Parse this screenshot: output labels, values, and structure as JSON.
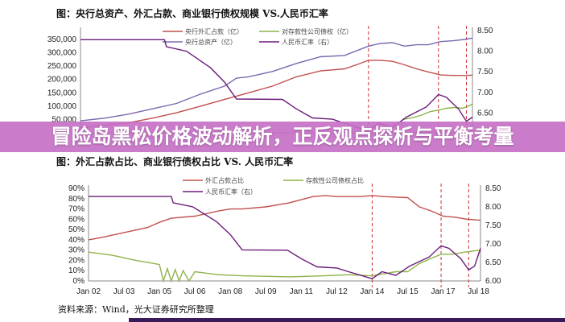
{
  "banner": {
    "title": "冒险岛黑松价格波动解析，正反观点探析与平衡考量",
    "color": "#c46ec4"
  },
  "source": "资料来源：Wind，光大证券研究所整理",
  "chart_data": [
    {
      "type": "line",
      "title": "图：央行总资产、外汇占款、商业银行债权规模 VS.人民币汇率",
      "left_axis": {
        "range": [
          0,
          350000
        ],
        "ticks": [
          "350,000",
          "300,000",
          "250,000",
          "200,000",
          "150,000",
          "100,000",
          "50,000"
        ],
        "tick_values": [
          350000,
          300000,
          250000,
          200000,
          150000,
          100000,
          50000
        ]
      },
      "right_axis": {
        "range": [
          6.0,
          8.5
        ],
        "ticks": [
          "8.50",
          "8.00",
          "7.50",
          "7.00",
          "6.50"
        ],
        "tick_values": [
          8.5,
          8.0,
          7.5,
          7.0,
          6.5
        ]
      },
      "x_range": [
        "2002-01",
        "2018-05"
      ],
      "reference_lines": [
        "2014-01",
        "2016-12",
        "2018-02"
      ],
      "legend_placement": "top",
      "series": [
        {
          "name": "央行外汇占款（亿）",
          "axis": "left",
          "color": "#c0504d",
          "points": [
            [
              "2002-01",
              20000
            ],
            [
              "2003-01",
              28000
            ],
            [
              "2004-01",
              38000
            ],
            [
              "2005-01",
              55000
            ],
            [
              "2006-01",
              75000
            ],
            [
              "2007-01",
              100000
            ],
            [
              "2008-01",
              125000
            ],
            [
              "2009-01",
              150000
            ],
            [
              "2010-01",
              175000
            ],
            [
              "2011-01",
              210000
            ],
            [
              "2012-01",
              232000
            ],
            [
              "2013-01",
              240000
            ],
            [
              "2013-07",
              255000
            ],
            [
              "2014-01",
              272000
            ],
            [
              "2014-07",
              272000
            ],
            [
              "2015-01",
              268000
            ],
            [
              "2015-07",
              255000
            ],
            [
              "2016-01",
              240000
            ],
            [
              "2016-07",
              228000
            ],
            [
              "2017-01",
              217000
            ],
            [
              "2017-07",
              215000
            ],
            [
              "2018-01",
              215000
            ],
            [
              "2018-05",
              216000
            ]
          ]
        },
        {
          "name": "对存款性公司债权（亿）",
          "axis": "left",
          "color": "#8db44a",
          "points": [
            [
              "2015-06",
              50000
            ],
            [
              "2015-10",
              55000
            ],
            [
              "2016-03",
              65000
            ],
            [
              "2016-08",
              80000
            ],
            [
              "2016-12",
              85000
            ],
            [
              "2017-04",
              92000
            ],
            [
              "2017-08",
              95000
            ],
            [
              "2017-12",
              92000
            ],
            [
              "2018-03",
              100000
            ],
            [
              "2018-05",
              108000
            ]
          ]
        },
        {
          "name": "央行总资产（亿）",
          "axis": "left",
          "color": "#7b68b0",
          "points": [
            [
              "2002-01",
              45000
            ],
            [
              "2003-01",
              55000
            ],
            [
              "2004-01",
              70000
            ],
            [
              "2005-01",
              90000
            ],
            [
              "2006-01",
              110000
            ],
            [
              "2007-01",
              145000
            ],
            [
              "2008-01",
              175000
            ],
            [
              "2008-07",
              205000
            ],
            [
              "2009-01",
              210000
            ],
            [
              "2010-01",
              230000
            ],
            [
              "2011-01",
              260000
            ],
            [
              "2012-01",
              285000
            ],
            [
              "2013-01",
              290000
            ],
            [
              "2014-01",
              325000
            ],
            [
              "2014-07",
              335000
            ],
            [
              "2015-01",
              338000
            ],
            [
              "2015-07",
              325000
            ],
            [
              "2016-01",
              330000
            ],
            [
              "2016-07",
              330000
            ],
            [
              "2017-01",
              342000
            ],
            [
              "2017-07",
              345000
            ],
            [
              "2018-01",
              350000
            ],
            [
              "2018-05",
              355000
            ]
          ]
        },
        {
          "name": "人民币汇率（右）",
          "axis": "right",
          "color": "#6a1b7a",
          "points": [
            [
              "2002-01",
              8.28
            ],
            [
              "2005-07",
              8.28
            ],
            [
              "2005-08",
              8.11
            ],
            [
              "2006-06",
              8.0
            ],
            [
              "2007-06",
              7.6
            ],
            [
              "2008-01",
              7.25
            ],
            [
              "2008-07",
              6.84
            ],
            [
              "2010-06",
              6.83
            ],
            [
              "2011-01",
              6.6
            ],
            [
              "2011-09",
              6.38
            ],
            [
              "2012-07",
              6.35
            ],
            [
              "2013-01",
              6.25
            ],
            [
              "2014-01",
              6.06
            ],
            [
              "2014-06",
              6.25
            ],
            [
              "2015-01",
              6.15
            ],
            [
              "2015-08",
              6.4
            ],
            [
              "2016-06",
              6.65
            ],
            [
              "2016-12",
              6.95
            ],
            [
              "2017-04",
              6.88
            ],
            [
              "2017-10",
              6.6
            ],
            [
              "2018-02",
              6.3
            ],
            [
              "2018-05",
              6.4
            ]
          ]
        }
      ]
    },
    {
      "type": "line",
      "title": "图：外汇占款占比、商业银行债权占比 VS. 人民币汇率",
      "left_axis": {
        "range": [
          0,
          90
        ],
        "ticks": [
          "90%",
          "80%",
          "70%",
          "60%",
          "50%",
          "40%",
          "30%",
          "20%",
          "10%",
          "0%"
        ],
        "tick_values": [
          90,
          80,
          70,
          60,
          50,
          40,
          30,
          20,
          10,
          0
        ]
      },
      "right_axis": {
        "range": [
          6.0,
          8.5
        ],
        "ticks": [
          "8.50",
          "8.00",
          "7.50",
          "7.00",
          "6.50",
          "6.00"
        ],
        "tick_values": [
          8.5,
          8.0,
          7.5,
          7.0,
          6.5,
          6.0
        ]
      },
      "x_range": [
        "2002-01",
        "2018-08"
      ],
      "x_ticks": [
        "Jan 02",
        "Jul 03",
        "Jan 05",
        "Jul 06",
        "Jan 08",
        "Jul 09",
        "Jan 11",
        "Jul 12",
        "Jan 14",
        "Jul 15",
        "Jan 17",
        "Jul 18"
      ],
      "x_tick_dates": [
        "2002-01",
        "2003-07",
        "2005-01",
        "2006-07",
        "2008-01",
        "2009-07",
        "2011-01",
        "2012-07",
        "2014-01",
        "2015-07",
        "2017-01",
        "2018-07"
      ],
      "reference_lines": [
        "2014-01",
        "2016-12",
        "2018-02"
      ],
      "legend_placement": "top",
      "series": [
        {
          "name": "外汇占款占比",
          "axis": "left",
          "color": "#c0504d",
          "points": [
            [
              "2002-01",
              40
            ],
            [
              "2002-07",
              42
            ],
            [
              "2003-07",
              47
            ],
            [
              "2004-07",
              52
            ],
            [
              "2005-01",
              57
            ],
            [
              "2005-07",
              61
            ],
            [
              "2006-07",
              63
            ],
            [
              "2007-07",
              68
            ],
            [
              "2008-01",
              70
            ],
            [
              "2008-07",
              70
            ],
            [
              "2009-07",
              72
            ],
            [
              "2010-07",
              76
            ],
            [
              "2011-07",
              82
            ],
            [
              "2012-01",
              83
            ],
            [
              "2012-07",
              82
            ],
            [
              "2013-07",
              82
            ],
            [
              "2014-01",
              83
            ],
            [
              "2014-07",
              82
            ],
            [
              "2015-07",
              81
            ],
            [
              "2016-01",
              72
            ],
            [
              "2016-07",
              68
            ],
            [
              "2017-01",
              63
            ],
            [
              "2017-07",
              62
            ],
            [
              "2018-01",
              60
            ],
            [
              "2018-08",
              59
            ]
          ]
        },
        {
          "name": "存款性公司债权占比",
          "axis": "left",
          "color": "#8db44a",
          "points": [
            [
              "2002-01",
              28
            ],
            [
              "2003-01",
              25
            ],
            [
              "2004-01",
              20
            ],
            [
              "2005-01",
              16
            ],
            [
              "2005-03",
              0
            ],
            [
              "2005-05",
              12
            ],
            [
              "2005-07",
              0
            ],
            [
              "2005-09",
              11
            ],
            [
              "2005-11",
              0
            ],
            [
              "2006-01",
              10
            ],
            [
              "2006-04",
              0
            ],
            [
              "2006-07",
              9
            ],
            [
              "2007-07",
              6
            ],
            [
              "2008-07",
              5
            ],
            [
              "2010-07",
              4
            ],
            [
              "2012-01",
              5
            ],
            [
              "2013-01",
              6
            ],
            [
              "2014-01",
              5
            ],
            [
              "2014-07",
              7
            ],
            [
              "2015-01",
              9
            ],
            [
              "2015-07",
              9
            ],
            [
              "2016-01",
              17
            ],
            [
              "2016-07",
              22
            ],
            [
              "2016-12",
              26
            ],
            [
              "2017-06",
              26
            ],
            [
              "2017-12",
              28
            ],
            [
              "2018-08",
              30
            ]
          ]
        },
        {
          "name": "人民币汇率（右）",
          "axis": "right",
          "color": "#6a1b7a",
          "points": [
            [
              "2002-01",
              8.28
            ],
            [
              "2005-07",
              8.28
            ],
            [
              "2005-08",
              8.11
            ],
            [
              "2006-06",
              8.0
            ],
            [
              "2007-06",
              7.6
            ],
            [
              "2008-01",
              7.25
            ],
            [
              "2008-07",
              6.84
            ],
            [
              "2010-06",
              6.83
            ],
            [
              "2011-01",
              6.6
            ],
            [
              "2011-09",
              6.38
            ],
            [
              "2012-07",
              6.35
            ],
            [
              "2013-01",
              6.25
            ],
            [
              "2014-01",
              6.06
            ],
            [
              "2014-06",
              6.25
            ],
            [
              "2015-01",
              6.15
            ],
            [
              "2015-08",
              6.4
            ],
            [
              "2016-06",
              6.65
            ],
            [
              "2016-12",
              6.95
            ],
            [
              "2017-04",
              6.88
            ],
            [
              "2017-10",
              6.6
            ],
            [
              "2018-02",
              6.3
            ],
            [
              "2018-05",
              6.4
            ],
            [
              "2018-08",
              6.88
            ]
          ]
        }
      ]
    }
  ]
}
